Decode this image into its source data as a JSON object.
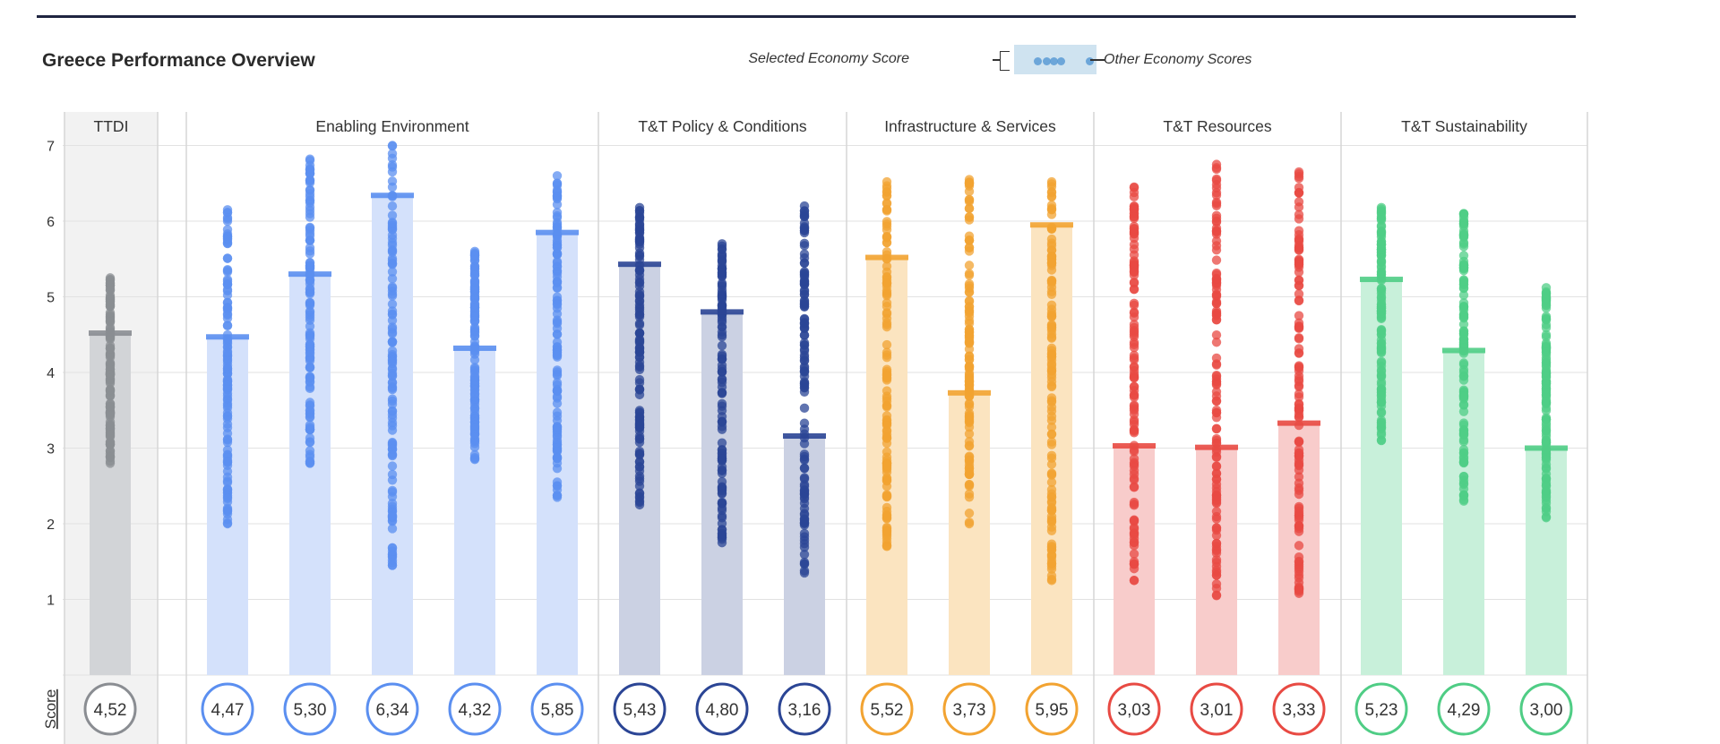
{
  "title": "Greece Performance Overview",
  "legend": {
    "selected_label": "Selected Economy Score",
    "other_label": "Other Economy Scores"
  },
  "chart_data": {
    "type": "bar",
    "title": "Greece Performance Overview",
    "ylabel": "",
    "row_label": "Score",
    "ylim": [
      0,
      7
    ],
    "yticks": [
      1,
      2,
      3,
      4,
      5,
      6,
      7
    ],
    "grid": true,
    "groups": [
      {
        "name": "TTDI",
        "color": "#8a8d92",
        "fill": "#d2d4d7",
        "bg": "#f2f2f2",
        "columns": [
          {
            "value": 4.52,
            "label": "4,52",
            "dist": [
              2.8,
              5.25
            ]
          }
        ]
      },
      {
        "name": "Enabling Environment",
        "color": "#5b8ff0",
        "fill": "#d4e1fb",
        "bg": "",
        "columns": [
          {
            "value": 4.47,
            "label": "4,47",
            "dist": [
              2.0,
              6.15
            ]
          },
          {
            "value": 5.3,
            "label": "5,30",
            "dist": [
              2.8,
              6.82
            ]
          },
          {
            "value": 6.34,
            "label": "6,34",
            "dist": [
              1.45,
              7.0
            ]
          },
          {
            "value": 4.32,
            "label": "4,32",
            "dist": [
              2.85,
              5.6
            ]
          },
          {
            "value": 5.85,
            "label": "5,85",
            "dist": [
              2.35,
              6.6
            ]
          }
        ]
      },
      {
        "name": "T&T Policy & Conditions",
        "color": "#2b4595",
        "fill": "#cbd1e3",
        "bg": "",
        "columns": [
          {
            "value": 5.43,
            "label": "5,43",
            "dist": [
              2.25,
              6.18
            ]
          },
          {
            "value": 4.8,
            "label": "4,80",
            "dist": [
              1.75,
              5.7
            ]
          },
          {
            "value": 3.16,
            "label": "3,16",
            "dist": [
              1.35,
              6.2
            ]
          }
        ]
      },
      {
        "name": "Infrastructure & Services",
        "color": "#f2a331",
        "fill": "#fbe4c0",
        "bg": "",
        "columns": [
          {
            "value": 5.52,
            "label": "5,52",
            "dist": [
              1.7,
              6.52
            ]
          },
          {
            "value": 3.73,
            "label": "3,73",
            "dist": [
              2.0,
              6.55
            ]
          },
          {
            "value": 5.95,
            "label": "5,95",
            "dist": [
              1.25,
              6.52
            ]
          }
        ]
      },
      {
        "name": "T&T Resources",
        "color": "#e84a43",
        "fill": "#f8cccb",
        "bg": "",
        "columns": [
          {
            "value": 3.03,
            "label": "3,03",
            "dist": [
              1.25,
              6.45
            ]
          },
          {
            "value": 3.01,
            "label": "3,01",
            "dist": [
              1.05,
              6.75
            ]
          },
          {
            "value": 3.33,
            "label": "3,33",
            "dist": [
              1.08,
              6.65
            ]
          }
        ]
      },
      {
        "name": "T&T Sustainability",
        "color": "#4fcd85",
        "fill": "#c8f0da",
        "bg": "",
        "columns": [
          {
            "value": 5.23,
            "label": "5,23",
            "dist": [
              3.1,
              6.18
            ]
          },
          {
            "value": 4.29,
            "label": "4,29",
            "dist": [
              2.3,
              6.1
            ]
          },
          {
            "value": 3.0,
            "label": "3,00",
            "dist": [
              2.08,
              5.12
            ]
          }
        ]
      }
    ]
  }
}
